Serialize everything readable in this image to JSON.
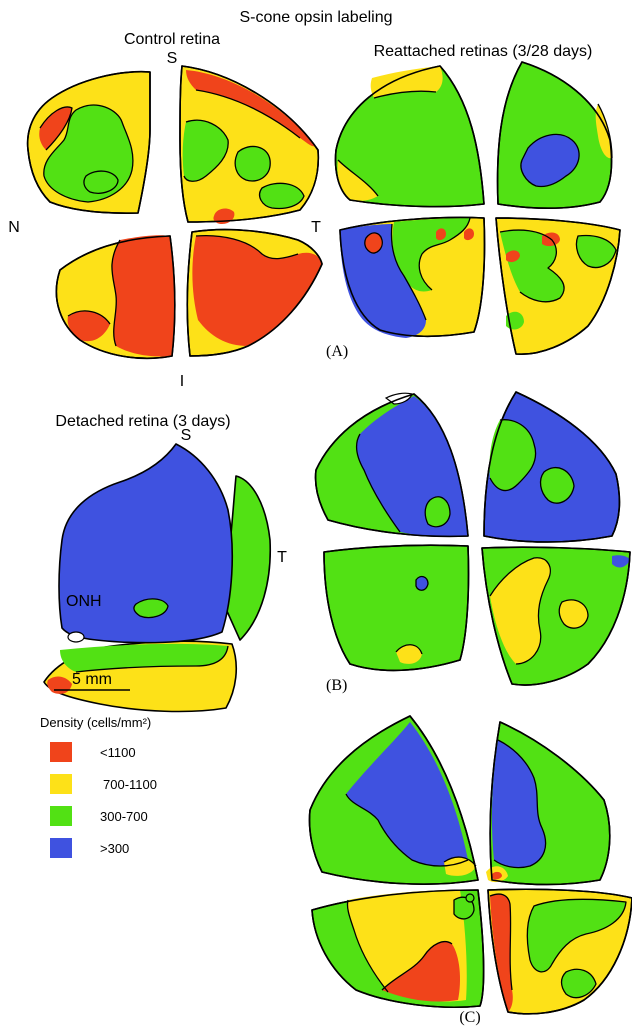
{
  "figure": {
    "title": "S-cone opsin labeling",
    "control_label": "Control retina",
    "reattached_label": "Reattached retinas (3/28 days)",
    "detached_label": "Detached retina (3 days)",
    "orientation": {
      "superior": "S",
      "nasal": "N",
      "temporal": "T",
      "inferior": "I"
    },
    "onh_label": "ONH",
    "scale_bar_label": "5 mm",
    "panels": {
      "a": "(A)",
      "b": "(B)",
      "c": "(C)"
    }
  },
  "legend": {
    "title": "Density (cells/mm²)",
    "items": [
      {
        "label": "<1100",
        "color": "#f0441b"
      },
      {
        "label": "700-1100",
        "color": "#fde118"
      },
      {
        "label": "300-700",
        "color": "#52e114"
      },
      {
        "label": ">300",
        "color": "#3f52e0"
      }
    ]
  },
  "colors": {
    "red": "#f0441b",
    "yellow": "#fde118",
    "green": "#52e114",
    "blue": "#3f52e0"
  }
}
